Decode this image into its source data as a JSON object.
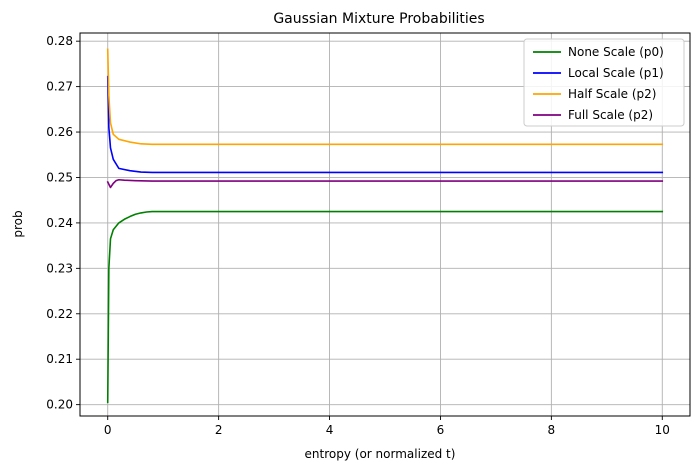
{
  "chart_data": {
    "type": "line",
    "title": "Gaussian Mixture Probabilities",
    "xlabel": "entropy (or normalized t)",
    "ylabel": "prob",
    "xlim": [
      -0.5,
      10.5
    ],
    "ylim": [
      0.1975,
      0.2818
    ],
    "xticks": [
      0,
      2,
      4,
      6,
      8,
      10
    ],
    "xtick_labels": [
      "0",
      "2",
      "4",
      "6",
      "8",
      "10"
    ],
    "yticks": [
      0.2,
      0.21,
      0.22,
      0.23,
      0.24,
      0.25,
      0.26,
      0.27,
      0.28
    ],
    "ytick_labels": [
      "0.20",
      "0.21",
      "0.22",
      "0.23",
      "0.24",
      "0.25",
      "0.26",
      "0.27",
      "0.28"
    ],
    "grid": true,
    "legend_position": "top-right",
    "series": [
      {
        "name": "None Scale (p0)",
        "color": "#008000",
        "x": [
          0,
          0.02,
          0.05,
          0.1,
          0.2,
          0.3,
          0.4,
          0.5,
          0.6,
          0.7,
          0.8,
          1.0,
          2.0,
          4.0,
          6.0,
          8.0,
          10.0
        ],
        "y": [
          0.2005,
          0.23,
          0.2365,
          0.2385,
          0.24,
          0.2408,
          0.2414,
          0.2419,
          0.2422,
          0.2424,
          0.2425,
          0.2425,
          0.2425,
          0.2425,
          0.2425,
          0.2425,
          0.2425
        ]
      },
      {
        "name": "Local Scale (p1)",
        "color": "#0000ff",
        "x": [
          0,
          0.02,
          0.05,
          0.1,
          0.2,
          0.4,
          0.6,
          0.8,
          1.0,
          2.0,
          4.0,
          6.0,
          8.0,
          10.0
        ],
        "y": [
          0.2722,
          0.261,
          0.2565,
          0.254,
          0.252,
          0.2515,
          0.2512,
          0.2511,
          0.2511,
          0.2511,
          0.2511,
          0.2511,
          0.2511,
          0.2511
        ]
      },
      {
        "name": "Half Scale (p2)",
        "color": "#ffa500",
        "x": [
          0,
          0.02,
          0.05,
          0.1,
          0.2,
          0.4,
          0.6,
          0.8,
          1.0,
          2.0,
          4.0,
          6.0,
          8.0,
          10.0
        ],
        "y": [
          0.2782,
          0.268,
          0.262,
          0.2595,
          0.2584,
          0.2578,
          0.2574,
          0.2573,
          0.2573,
          0.2573,
          0.2573,
          0.2573,
          0.2573,
          0.2573
        ]
      },
      {
        "name": "Full Scale (p2)",
        "color": "#800080",
        "x": [
          0,
          0.05,
          0.1,
          0.15,
          0.2,
          0.3,
          0.5,
          0.8,
          1.0,
          2.0,
          4.0,
          6.0,
          8.0,
          10.0
        ],
        "y": [
          0.249,
          0.2478,
          0.2487,
          0.2493,
          0.2495,
          0.2494,
          0.2493,
          0.2492,
          0.2492,
          0.2492,
          0.2492,
          0.2492,
          0.2492,
          0.2492
        ]
      }
    ]
  }
}
